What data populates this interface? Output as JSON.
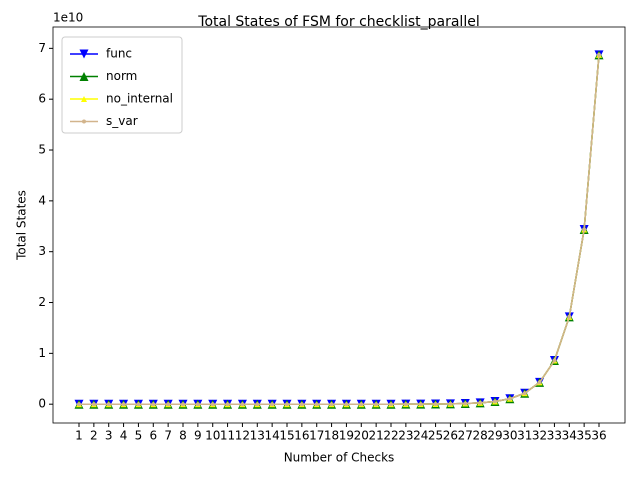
{
  "chart_data": {
    "type": "line",
    "title": "Total States of FSM for checklist_parallel",
    "x_label": "Number of Checks",
    "y_label": "Total States",
    "y_offset_label": "1e10",
    "x": [
      1,
      2,
      3,
      4,
      5,
      6,
      7,
      8,
      9,
      10,
      11,
      12,
      13,
      14,
      15,
      16,
      17,
      18,
      19,
      20,
      21,
      22,
      23,
      24,
      25,
      26,
      27,
      28,
      29,
      30,
      31,
      32,
      33,
      34,
      35,
      36
    ],
    "series": [
      {
        "name": "func",
        "color": "#0000ff",
        "marker": "triangle-down",
        "values": [
          0,
          0,
          0,
          0,
          0,
          0,
          0,
          0,
          0,
          0,
          0,
          0,
          0,
          0,
          0,
          0,
          0,
          0,
          0,
          0,
          0,
          0,
          0.001,
          0.002,
          0.003,
          0.007,
          0.013,
          0.027,
          0.054,
          0.107,
          0.215,
          0.429,
          0.859,
          1.718,
          3.436,
          6.872
        ]
      },
      {
        "name": "norm",
        "color": "#008000",
        "marker": "triangle-up",
        "values": [
          0,
          0,
          0,
          0,
          0,
          0,
          0,
          0,
          0,
          0,
          0,
          0,
          0,
          0,
          0,
          0,
          0,
          0,
          0,
          0,
          0,
          0,
          0.001,
          0.002,
          0.003,
          0.007,
          0.013,
          0.027,
          0.054,
          0.107,
          0.215,
          0.429,
          0.859,
          1.718,
          3.436,
          6.872
        ]
      },
      {
        "name": "no_internal",
        "color": "#ffff00",
        "marker": "triangle-up-small",
        "values": [
          0,
          0,
          0,
          0,
          0,
          0,
          0,
          0,
          0,
          0,
          0,
          0,
          0,
          0,
          0,
          0,
          0,
          0,
          0,
          0,
          0,
          0,
          0.001,
          0.002,
          0.003,
          0.007,
          0.013,
          0.027,
          0.054,
          0.107,
          0.215,
          0.429,
          0.859,
          1.718,
          3.436,
          6.872
        ]
      },
      {
        "name": "s_var",
        "color": "#d2b48c",
        "marker": "circle",
        "values": [
          0,
          0,
          0,
          0,
          0,
          0,
          0,
          0,
          0,
          0,
          0,
          0,
          0,
          0,
          0,
          0,
          0,
          0,
          0,
          0,
          0,
          0,
          0.001,
          0.002,
          0.003,
          0.007,
          0.013,
          0.027,
          0.054,
          0.107,
          0.215,
          0.429,
          0.859,
          1.718,
          3.436,
          6.872
        ]
      }
    ],
    "xlim": [
      -0.75,
      37.75
    ],
    "xticks": [
      1,
      2,
      3,
      4,
      5,
      6,
      7,
      8,
      9,
      10,
      11,
      12,
      13,
      14,
      15,
      16,
      17,
      18,
      19,
      20,
      21,
      22,
      23,
      24,
      25,
      26,
      27,
      28,
      29,
      30,
      31,
      32,
      33,
      34,
      35,
      36
    ],
    "ylim": [
      -0.37,
      7.42
    ],
    "yticks": [
      0,
      1,
      2,
      3,
      4,
      5,
      6,
      7
    ],
    "legend": "upper left"
  }
}
